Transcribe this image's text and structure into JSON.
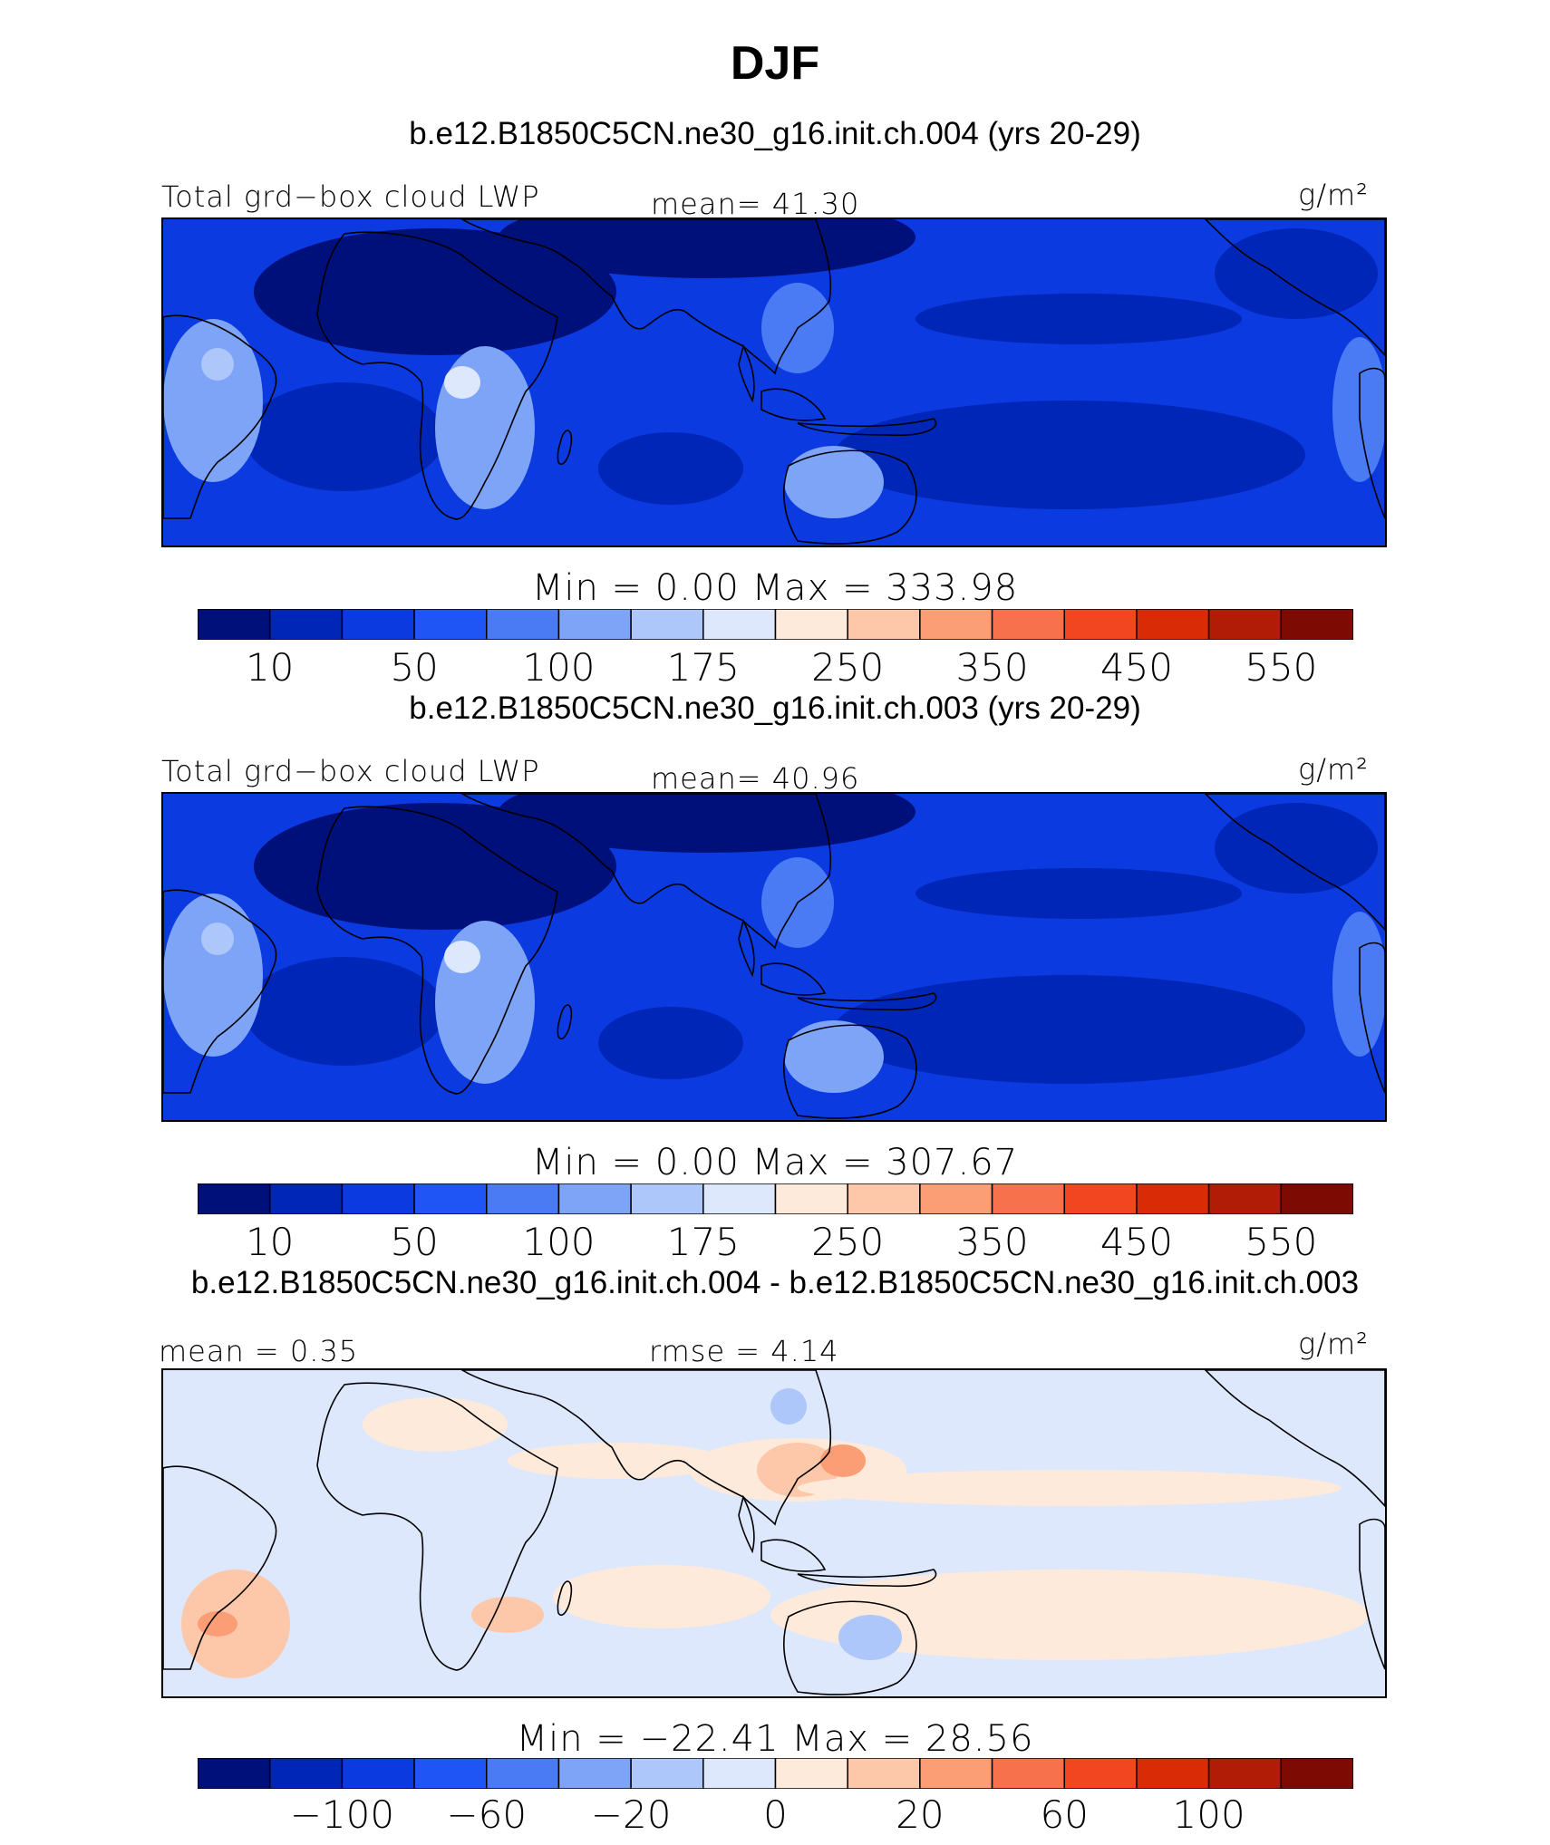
{
  "title": "DJF",
  "units": "g/m²",
  "panels": [
    {
      "case": "b.e12.B1850C5CN.ne30_g16.init.ch.004 (yrs 20-29)",
      "variable": "Total grd−box cloud LWP",
      "stat_left": "",
      "mean": "mean=   41.30",
      "minmax": "Min  =     0.00  Max  = 333.98",
      "kind": "abs",
      "ticks": [
        "10",
        "50",
        "100",
        "175",
        "250",
        "350",
        "450",
        "550"
      ]
    },
    {
      "case": "b.e12.B1850C5CN.ne30_g16.init.ch.003 (yrs 20-29)",
      "variable": "Total grd−box cloud LWP",
      "stat_left": "",
      "mean": "mean=   40.96",
      "minmax": "Min  =     0.00  Max  = 307.67",
      "kind": "abs",
      "ticks": [
        "10",
        "50",
        "100",
        "175",
        "250",
        "350",
        "450",
        "550"
      ]
    },
    {
      "case": "b.e12.B1850C5CN.ne30_g16.init.ch.004 - b.e12.B1850C5CN.ne30_g16.init.ch.003",
      "variable": "mean =    0.35",
      "stat_left": "",
      "mean": "rmse =    4.14",
      "minmax": "Min  = −22.41  Max  =   28.56",
      "kind": "diff",
      "ticks": [
        "−100",
        "−60",
        "−20",
        "0",
        "20",
        "60",
        "100"
      ]
    }
  ],
  "colorbar_colors": [
    "#00107a",
    "#0026b8",
    "#0a3ae0",
    "#1f55f5",
    "#4a7bf5",
    "#7ea4f7",
    "#aec7fa",
    "#dde8fd",
    "#feeadb",
    "#fdc8aa",
    "#fb9e76",
    "#f7714c",
    "#f1461f",
    "#d92c06",
    "#b01c06",
    "#7d0a03"
  ],
  "chart_data": [
    {
      "type": "heatmap",
      "title": "DJF",
      "subtitle": "b.e12.B1850C5CN.ne30_g16.init.ch.004 (yrs 20-29)",
      "variable": "Total grd−box cloud LWP",
      "units": "g/m²",
      "mean": 41.3,
      "min": 0.0,
      "max": 333.98,
      "levels": [
        10,
        50,
        100,
        175,
        250,
        350,
        450,
        550
      ]
    },
    {
      "type": "heatmap",
      "subtitle": "b.e12.B1850C5CN.ne30_g16.init.ch.003 (yrs 20-29)",
      "variable": "Total grd−box cloud LWP",
      "units": "g/m²",
      "mean": 40.96,
      "min": 0.0,
      "max": 307.67,
      "levels": [
        10,
        50,
        100,
        175,
        250,
        350,
        450,
        550
      ]
    },
    {
      "type": "heatmap",
      "subtitle": "b.e12.B1850C5CN.ne30_g16.init.ch.004 - b.e12.B1850C5CN.ne30_g16.init.ch.003",
      "units": "g/m²",
      "mean": 0.35,
      "rmse": 4.14,
      "min": -22.41,
      "max": 28.56,
      "levels": [
        -100,
        -60,
        -20,
        0,
        20,
        60,
        100
      ]
    }
  ]
}
